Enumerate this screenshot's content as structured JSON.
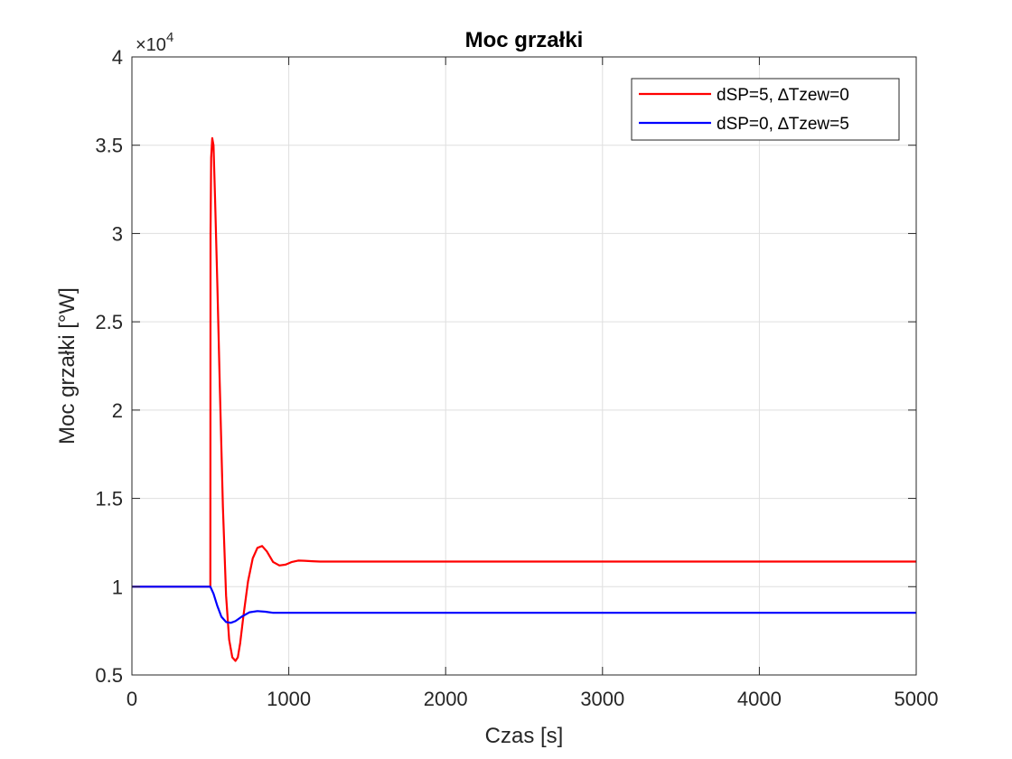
{
  "chart_data": {
    "type": "line",
    "title": "Moc grzałki",
    "xlabel": "Czas [s]",
    "ylabel": "Moc grzałki [°W]",
    "xlim": [
      0,
      5000
    ],
    "ylim": [
      5000,
      40000
    ],
    "x_ticks": [
      0,
      1000,
      2000,
      3000,
      4000,
      5000
    ],
    "x_tick_labels": [
      "0",
      "1000",
      "2000",
      "3000",
      "4000",
      "5000"
    ],
    "y_ticks": [
      5000,
      10000,
      15000,
      20000,
      25000,
      30000,
      35000,
      40000
    ],
    "y_tick_labels": [
      "0.5",
      "1",
      "1.5",
      "2",
      "2.5",
      "3",
      "3.5",
      "4"
    ],
    "y_exponent_base": "×10",
    "y_exponent_power": "4",
    "grid": true,
    "legend_position": "top-right",
    "series": [
      {
        "name": "dSP=5, ∆Tzew=0",
        "color": "#ff0000",
        "x": [
          0,
          500,
          501,
          505,
          512,
          520,
          530,
          545,
          560,
          580,
          600,
          620,
          640,
          660,
          675,
          690,
          710,
          740,
          770,
          800,
          830,
          860,
          900,
          940,
          980,
          1020,
          1060,
          1100,
          1150,
          1200,
          1300,
          1500,
          2000,
          3000,
          4000,
          5000
        ],
        "y": [
          10000,
          10000,
          30000,
          34300,
          35400,
          35000,
          32000,
          27000,
          21500,
          14500,
          9500,
          7000,
          6000,
          5800,
          6000,
          6800,
          8300,
          10300,
          11600,
          12200,
          12300,
          12000,
          11400,
          11200,
          11250,
          11400,
          11480,
          11470,
          11440,
          11420,
          11420,
          11420,
          11420,
          11420,
          11420,
          11420
        ]
      },
      {
        "name": "dSP=0, ∆Tzew=5",
        "color": "#0000ff",
        "x": [
          0,
          500,
          520,
          545,
          570,
          600,
          630,
          660,
          700,
          750,
          800,
          850,
          900,
          1000,
          1200,
          2000,
          3000,
          4000,
          5000
        ],
        "y": [
          10000,
          10000,
          9600,
          8900,
          8300,
          8000,
          7950,
          8050,
          8300,
          8550,
          8620,
          8580,
          8520,
          8520,
          8520,
          8520,
          8520,
          8520,
          8520
        ]
      }
    ]
  }
}
